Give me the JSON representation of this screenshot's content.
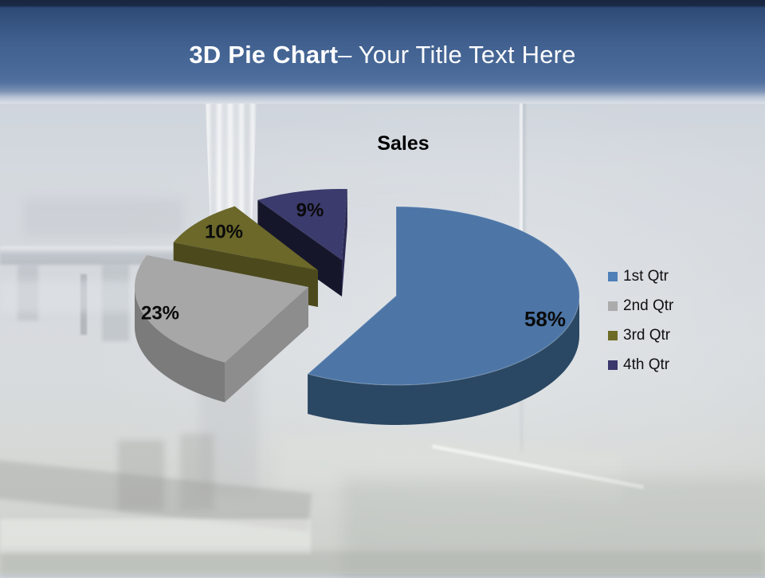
{
  "slide": {
    "title_bold": "3D Pie Chart",
    "title_rest": "– Your Title Text Here"
  },
  "chart_data": {
    "type": "pie",
    "style": "3d-exploded",
    "title": "Sales",
    "categories": [
      "1st Qtr",
      "2nd Qtr",
      "3rd Qtr",
      "4th Qtr"
    ],
    "values": [
      58,
      23,
      10,
      9
    ],
    "unit": "%",
    "legend_position": "right",
    "slice_colors": [
      {
        "top": "#4d76a7",
        "arc": "#2a4763",
        "wall_start": "#2e4e6f",
        "wall_end": "#30506f",
        "legend": "#4f80b8"
      },
      {
        "top": "#a7a7a7",
        "arc": "#7b7b7b",
        "wall_start": "#8d8d8d",
        "wall_end": "#868686",
        "legend": "#ababab"
      },
      {
        "top": "#6b682a",
        "arc": "#4c4a1d",
        "wall_start": "#4c4a1d",
        "wall_end": "#403e16",
        "legend": "#6e6b28"
      },
      {
        "top": "#3c3b6d",
        "arc": "#20203e",
        "wall_start": "#16162b",
        "wall_end": "#2b2a52",
        "legend": "#39376b"
      }
    ]
  }
}
